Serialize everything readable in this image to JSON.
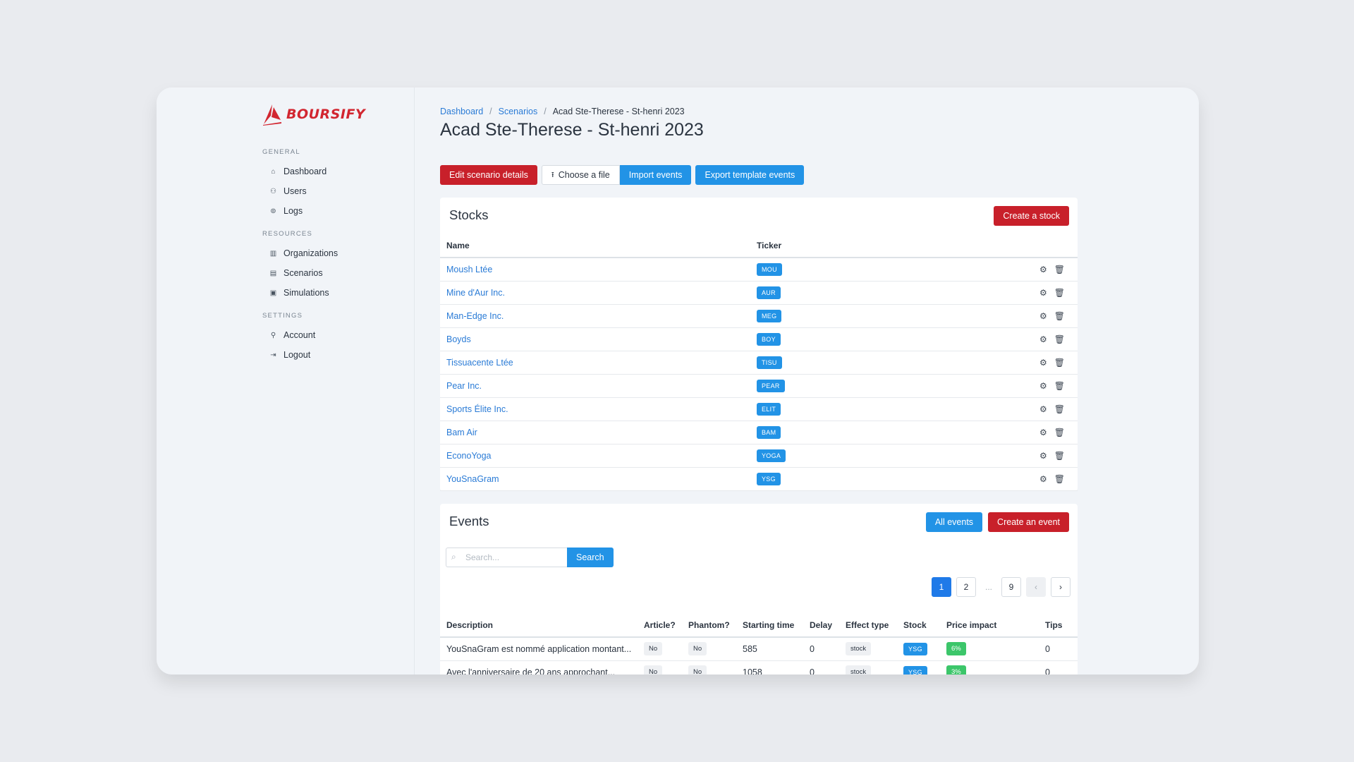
{
  "brand": {
    "name": "BOURSIFY",
    "color": "#d22630"
  },
  "sidebar": {
    "sections": [
      {
        "label": "GENERAL",
        "items": [
          {
            "label": "Dashboard",
            "icon": "home-icon"
          },
          {
            "label": "Users",
            "icon": "users-icon"
          },
          {
            "label": "Logs",
            "icon": "logs-icon"
          }
        ]
      },
      {
        "label": "RESOURCES",
        "items": [
          {
            "label": "Organizations",
            "icon": "building-icon"
          },
          {
            "label": "Scenarios",
            "icon": "scenario-icon"
          },
          {
            "label": "Simulations",
            "icon": "calendar-icon"
          }
        ]
      },
      {
        "label": "SETTINGS",
        "items": [
          {
            "label": "Account",
            "icon": "user-icon"
          },
          {
            "label": "Logout",
            "icon": "logout-icon"
          }
        ]
      }
    ]
  },
  "breadcrumb": {
    "dashboard": "Dashboard",
    "scenarios": "Scenarios",
    "current": "Acad Ste-Therese - St-henri 2023",
    "separator": "/"
  },
  "page": {
    "title": "Acad Ste-Therese - St-henri 2023"
  },
  "toolbar": {
    "edit_label": "Edit scenario details",
    "choose_file_label": "Choose a file",
    "import_label": "Import events",
    "export_label": "Export template events"
  },
  "stocks": {
    "title": "Stocks",
    "create_label": "Create a stock",
    "columns": {
      "name": "Name",
      "ticker": "Ticker"
    },
    "rows": [
      {
        "name": "Moush Ltée",
        "ticker": "MOU"
      },
      {
        "name": "Mine d'Aur Inc.",
        "ticker": "AUR"
      },
      {
        "name": "Man-Edge Inc.",
        "ticker": "MEG"
      },
      {
        "name": "Boyds",
        "ticker": "BOY"
      },
      {
        "name": "Tissuacente Ltée",
        "ticker": "TISU"
      },
      {
        "name": "Pear Inc.",
        "ticker": "PEAR"
      },
      {
        "name": "Sports Élite Inc.",
        "ticker": "ELIT"
      },
      {
        "name": "Bam Air",
        "ticker": "BAM"
      },
      {
        "name": "EconoYoga",
        "ticker": "YOGA"
      },
      {
        "name": "YouSnaGram",
        "ticker": "YSG"
      }
    ]
  },
  "events": {
    "title": "Events",
    "all_label": "All events",
    "create_label": "Create an event",
    "search": {
      "placeholder": "Search...",
      "value": "",
      "button_label": "Search"
    },
    "pagination": {
      "pages": [
        "1",
        "2",
        "9"
      ],
      "current": "1",
      "ellipsis": "..."
    },
    "columns": {
      "description": "Description",
      "article": "Article?",
      "phantom": "Phantom?",
      "starting_time": "Starting time",
      "delay": "Delay",
      "effect_type": "Effect type",
      "stock": "Stock",
      "price_impact": "Price impact",
      "tips": "Tips"
    },
    "rows": [
      {
        "description": "YouSnaGram est nommé application montant...",
        "article": "No",
        "phantom": "No",
        "starting_time": "585",
        "delay": "0",
        "effect_type": "stock",
        "stock": "YSG",
        "price_impact": "6%",
        "tips": "0"
      },
      {
        "description": "Avec l'anniversaire de 20 ans approchant...",
        "article": "No",
        "phantom": "No",
        "starting_time": "1058",
        "delay": "0",
        "effect_type": "stock",
        "stock": "YSG",
        "price_impact": "3%",
        "tips": "0"
      }
    ]
  }
}
